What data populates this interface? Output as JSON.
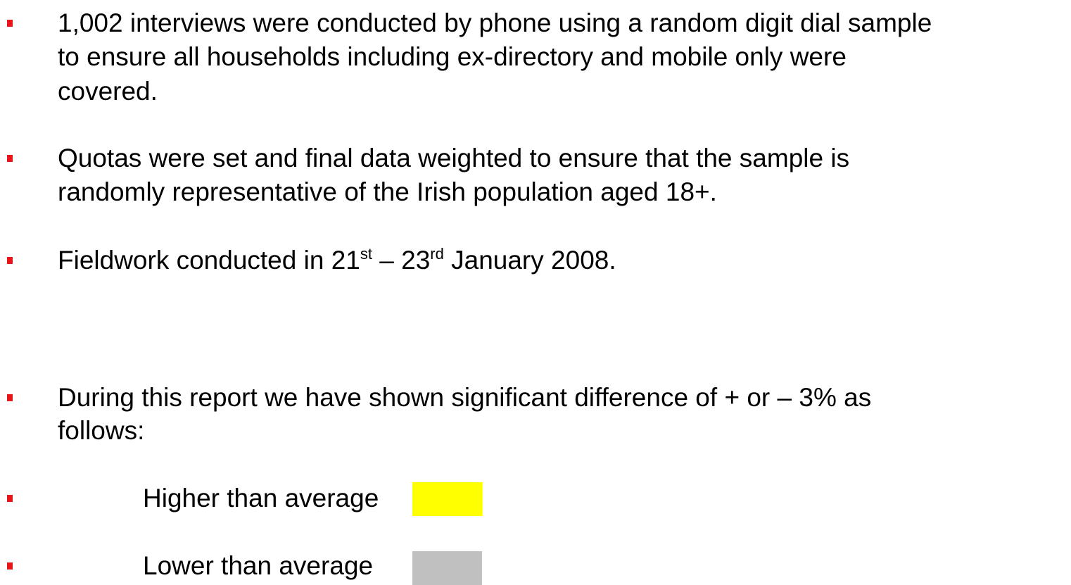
{
  "bullets": [
    {
      "lines": [
        "1,002 interviews were conducted by phone using a random digit dial sample",
        "to ensure all households including ex-directory and mobile only were",
        "covered."
      ]
    },
    {
      "lines": [
        "Quotas were set and final data weighted to ensure that the sample is",
        "randomly representative of the Irish population aged 18+."
      ]
    },
    {
      "segments": [
        "Fieldwork conducted in 21",
        "st",
        " – 23",
        "rd",
        " January 2008."
      ]
    },
    {
      "lines": [
        "During this report we have shown significant difference of + or – 3% as",
        "follows:"
      ]
    }
  ],
  "legend": [
    {
      "label": "Higher than average"
    },
    {
      "label": "Lower than average"
    }
  ]
}
